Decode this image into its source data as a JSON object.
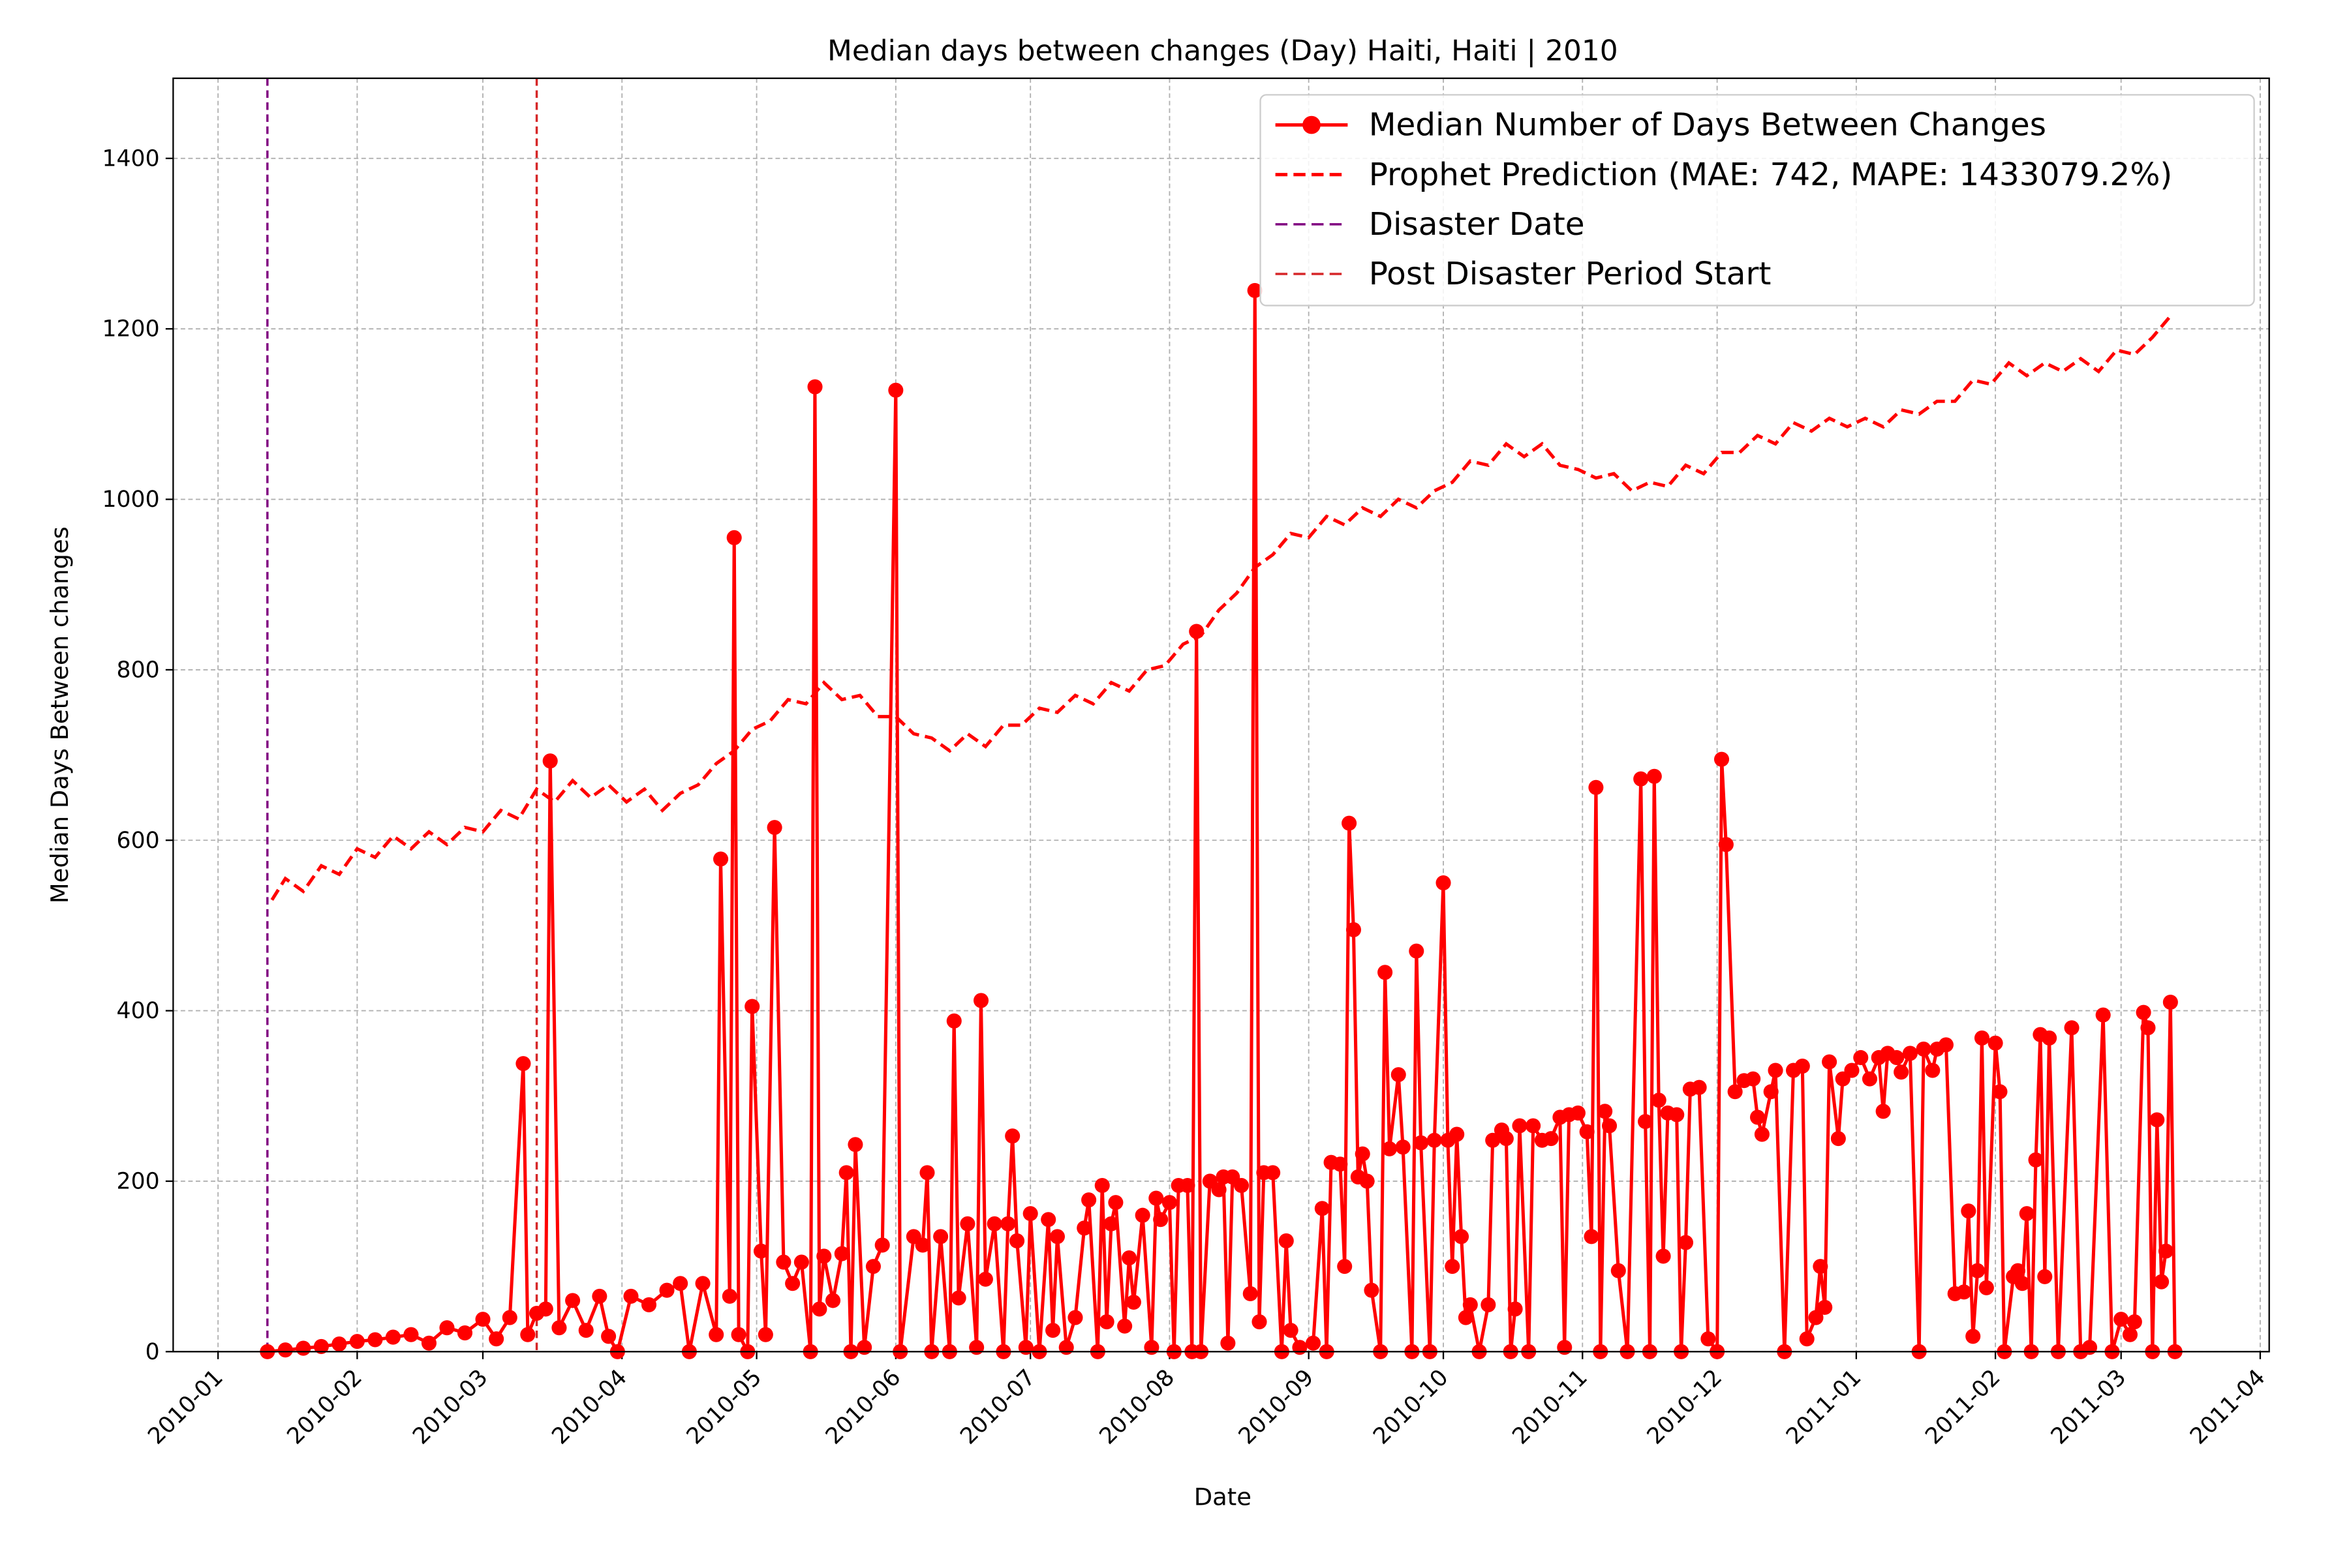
{
  "chart_data": {
    "type": "line",
    "title": "Median days between changes (Day) Haiti, Haiti | 2010",
    "xlabel": "Date",
    "ylabel": "Median Days Between changes",
    "xlim": [
      "2009-12-22",
      "2011-04-03"
    ],
    "ylim": [
      0,
      1494
    ],
    "yticks": [
      0,
      200,
      400,
      600,
      800,
      1000,
      1200,
      1400
    ],
    "xticks": [
      {
        "value": "2010-01-01",
        "label": "2010-01"
      },
      {
        "value": "2010-02-01",
        "label": "2010-02"
      },
      {
        "value": "2010-03-01",
        "label": "2010-03"
      },
      {
        "value": "2010-04-01",
        "label": "2010-04"
      },
      {
        "value": "2010-05-01",
        "label": "2010-05"
      },
      {
        "value": "2010-06-01",
        "label": "2010-06"
      },
      {
        "value": "2010-07-01",
        "label": "2010-07"
      },
      {
        "value": "2010-08-01",
        "label": "2010-08"
      },
      {
        "value": "2010-09-01",
        "label": "2010-09"
      },
      {
        "value": "2010-10-01",
        "label": "2010-10"
      },
      {
        "value": "2010-11-01",
        "label": "2010-11"
      },
      {
        "value": "2010-12-01",
        "label": "2010-12"
      },
      {
        "value": "2011-01-01",
        "label": "2011-01"
      },
      {
        "value": "2011-02-01",
        "label": "2011-02"
      },
      {
        "value": "2011-03-01",
        "label": "2011-03"
      },
      {
        "value": "2011-04-01",
        "label": "2011-04"
      }
    ],
    "grid": true,
    "legend": "upper right",
    "series": [
      {
        "name": "Median Number of Days Between Changes",
        "color": "#ff0000",
        "marker": "o",
        "linestyle": "solid",
        "x": [
          "2010-01-12",
          "2010-01-16",
          "2010-01-20",
          "2010-01-24",
          "2010-01-28",
          "2010-02-01",
          "2010-02-05",
          "2010-02-09",
          "2010-02-13",
          "2010-02-17",
          "2010-02-21",
          "2010-02-25",
          "2010-03-01",
          "2010-03-04",
          "2010-03-07",
          "2010-03-10",
          "2010-03-11",
          "2010-03-13",
          "2010-03-15",
          "2010-03-16",
          "2010-03-18",
          "2010-03-21",
          "2010-03-24",
          "2010-03-27",
          "2010-03-29",
          "2010-03-31",
          "2010-04-03",
          "2010-04-07",
          "2010-04-11",
          "2010-04-14",
          "2010-04-16",
          "2010-04-19",
          "2010-04-22",
          "2010-04-23",
          "2010-04-25",
          "2010-04-26",
          "2010-04-27",
          "2010-04-29",
          "2010-04-30",
          "2010-05-02",
          "2010-05-03",
          "2010-05-05",
          "2010-05-07",
          "2010-05-09",
          "2010-05-11",
          "2010-05-13",
          "2010-05-14",
          "2010-05-15",
          "2010-05-16",
          "2010-05-18",
          "2010-05-20",
          "2010-05-21",
          "2010-05-22",
          "2010-05-23",
          "2010-05-25",
          "2010-05-27",
          "2010-05-29",
          "2010-06-01",
          "2010-06-02",
          "2010-06-05",
          "2010-06-07",
          "2010-06-08",
          "2010-06-09",
          "2010-06-11",
          "2010-06-13",
          "2010-06-14",
          "2010-06-15",
          "2010-06-17",
          "2010-06-19",
          "2010-06-20",
          "2010-06-21",
          "2010-06-23",
          "2010-06-25",
          "2010-06-26",
          "2010-06-27",
          "2010-06-28",
          "2010-06-30",
          "2010-07-01",
          "2010-07-03",
          "2010-07-05",
          "2010-07-06",
          "2010-07-07",
          "2010-07-09",
          "2010-07-11",
          "2010-07-13",
          "2010-07-14",
          "2010-07-16",
          "2010-07-17",
          "2010-07-18",
          "2010-07-19",
          "2010-07-20",
          "2010-07-22",
          "2010-07-23",
          "2010-07-24",
          "2010-07-26",
          "2010-07-28",
          "2010-07-29",
          "2010-07-30",
          "2010-08-01",
          "2010-08-02",
          "2010-08-03",
          "2010-08-05",
          "2010-08-06",
          "2010-08-07",
          "2010-08-08",
          "2010-08-10",
          "2010-08-12",
          "2010-08-13",
          "2010-08-14",
          "2010-08-15",
          "2010-08-17",
          "2010-08-19",
          "2010-08-20",
          "2010-08-21",
          "2010-08-22",
          "2010-08-24",
          "2010-08-26",
          "2010-08-27",
          "2010-08-28",
          "2010-08-30",
          "2010-09-02",
          "2010-09-04",
          "2010-09-05",
          "2010-09-06",
          "2010-09-08",
          "2010-09-09",
          "2010-09-10",
          "2010-09-11",
          "2010-09-12",
          "2010-09-13",
          "2010-09-14",
          "2010-09-15",
          "2010-09-17",
          "2010-09-18",
          "2010-09-19",
          "2010-09-21",
          "2010-09-22",
          "2010-09-24",
          "2010-09-25",
          "2010-09-26",
          "2010-09-28",
          "2010-09-29",
          "2010-10-01",
          "2010-10-02",
          "2010-10-03",
          "2010-10-04",
          "2010-10-05",
          "2010-10-06",
          "2010-10-07",
          "2010-10-09",
          "2010-10-11",
          "2010-10-12",
          "2010-10-14",
          "2010-10-15",
          "2010-10-16",
          "2010-10-17",
          "2010-10-18",
          "2010-10-20",
          "2010-10-21",
          "2010-10-23",
          "2010-10-25",
          "2010-10-27",
          "2010-10-28",
          "2010-10-29",
          "2010-10-31",
          "2010-11-02",
          "2010-11-03",
          "2010-11-04",
          "2010-11-05",
          "2010-11-06",
          "2010-11-07",
          "2010-11-09",
          "2010-11-11",
          "2010-11-14",
          "2010-11-15",
          "2010-11-16",
          "2010-11-17",
          "2010-11-18",
          "2010-11-19",
          "2010-11-20",
          "2010-11-22",
          "2010-11-23",
          "2010-11-24",
          "2010-11-25",
          "2010-11-27",
          "2010-11-29",
          "2010-12-01",
          "2010-12-02",
          "2010-12-03",
          "2010-12-05",
          "2010-12-07",
          "2010-12-09",
          "2010-12-10",
          "2010-12-11",
          "2010-12-13",
          "2010-12-14",
          "2010-12-16",
          "2010-12-18",
          "2010-12-20",
          "2010-12-21",
          "2010-12-23",
          "2010-12-24",
          "2010-12-25",
          "2010-12-26",
          "2010-12-28",
          "2010-12-29",
          "2010-12-31",
          "2011-01-02",
          "2011-01-04",
          "2011-01-06",
          "2011-01-07",
          "2011-01-08",
          "2011-01-10",
          "2011-01-11",
          "2011-01-13",
          "2011-01-15",
          "2011-01-16",
          "2011-01-18",
          "2011-01-19",
          "2011-01-21",
          "2011-01-23",
          "2011-01-25",
          "2011-01-26",
          "2011-01-27",
          "2011-01-28",
          "2011-01-29",
          "2011-01-30",
          "2011-02-01",
          "2011-02-02",
          "2011-02-03",
          "2011-02-05",
          "2011-02-06",
          "2011-02-07",
          "2011-02-08",
          "2011-02-09",
          "2011-02-10",
          "2011-02-11",
          "2011-02-12",
          "2011-02-13",
          "2011-02-15",
          "2011-02-18",
          "2011-02-20",
          "2011-02-22",
          "2011-02-25",
          "2011-02-27",
          "2011-03-01",
          "2011-03-03",
          "2011-03-04",
          "2011-03-06",
          "2011-03-07",
          "2011-03-08",
          "2011-03-09",
          "2011-03-10",
          "2011-03-11",
          "2011-03-12",
          "2011-03-13"
        ],
        "values": [
          0,
          2,
          4,
          6,
          9,
          12,
          14,
          17,
          20,
          10,
          28,
          22,
          38,
          15,
          40,
          338,
          20,
          45,
          50,
          693,
          28,
          60,
          25,
          65,
          18,
          0,
          65,
          55,
          72,
          80,
          0,
          80,
          20,
          578,
          65,
          955,
          20,
          0,
          405,
          118,
          20,
          615,
          105,
          80,
          105,
          0,
          1132,
          50,
          112,
          60,
          115,
          210,
          0,
          243,
          5,
          100,
          125,
          1128,
          0,
          135,
          125,
          210,
          0,
          135,
          0,
          388,
          63,
          150,
          5,
          412,
          85,
          150,
          0,
          150,
          253,
          130,
          5,
          162,
          0,
          155,
          25,
          135,
          5,
          40,
          145,
          178,
          0,
          195,
          35,
          150,
          175,
          30,
          110,
          58,
          160,
          5,
          180,
          155,
          175,
          0,
          195,
          195,
          0,
          845,
          0,
          200,
          190,
          205,
          10,
          205,
          195,
          68,
          1245,
          35,
          210,
          210,
          0,
          130,
          25,
          5,
          10,
          168,
          0,
          222,
          220,
          100,
          620,
          495,
          205,
          232,
          200,
          72,
          0,
          445,
          238,
          325,
          240,
          0,
          470,
          245,
          0,
          248,
          550,
          248,
          100,
          255,
          135,
          40,
          55,
          0,
          55,
          248,
          260,
          250,
          0,
          50,
          265,
          0,
          265,
          248,
          250,
          275,
          5,
          278,
          280,
          258,
          135,
          662,
          0,
          282,
          265,
          95,
          0,
          672,
          270,
          0,
          675,
          295,
          112,
          280,
          278,
          0,
          128,
          308,
          310,
          15,
          0,
          695,
          595,
          305,
          318,
          320,
          275,
          255,
          305,
          330,
          0,
          330,
          335,
          15,
          40,
          100,
          52,
          340,
          250,
          320,
          330,
          345,
          320,
          345,
          282,
          350,
          345,
          328,
          350,
          0,
          355,
          330,
          355,
          360,
          68,
          70,
          165,
          18,
          95,
          368,
          75,
          362,
          305,
          0,
          88,
          95,
          80,
          162,
          0,
          225,
          372,
          88,
          368,
          0,
          380,
          0,
          5,
          395,
          0,
          38,
          20,
          35,
          398,
          380,
          0,
          272,
          82,
          118,
          410,
          0
        ]
      },
      {
        "name": "Prophet Prediction (MAE: 742, MAPE: 1433079.2%)",
        "color": "#ff0000",
        "linestyle": "dashed",
        "x": [
          "2010-01-13",
          "2010-01-16",
          "2010-01-20",
          "2010-01-24",
          "2010-01-28",
          "2010-02-01",
          "2010-02-05",
          "2010-02-09",
          "2010-02-13",
          "2010-02-17",
          "2010-02-21",
          "2010-02-25",
          "2010-03-01",
          "2010-03-05",
          "2010-03-09",
          "2010-03-13",
          "2010-03-17",
          "2010-03-21",
          "2010-03-25",
          "2010-03-29",
          "2010-04-02",
          "2010-04-06",
          "2010-04-10",
          "2010-04-14",
          "2010-04-18",
          "2010-04-22",
          "2010-04-26",
          "2010-04-30",
          "2010-05-04",
          "2010-05-08",
          "2010-05-12",
          "2010-05-16",
          "2010-05-20",
          "2010-05-24",
          "2010-05-28",
          "2010-06-01",
          "2010-06-05",
          "2010-06-09",
          "2010-06-13",
          "2010-06-17",
          "2010-06-21",
          "2010-06-25",
          "2010-06-29",
          "2010-07-03",
          "2010-07-07",
          "2010-07-11",
          "2010-07-15",
          "2010-07-19",
          "2010-07-23",
          "2010-07-27",
          "2010-07-31",
          "2010-08-04",
          "2010-08-08",
          "2010-08-12",
          "2010-08-16",
          "2010-08-20",
          "2010-08-24",
          "2010-08-28",
          "2010-09-01",
          "2010-09-05",
          "2010-09-09",
          "2010-09-13",
          "2010-09-17",
          "2010-09-21",
          "2010-09-25",
          "2010-09-29",
          "2010-10-03",
          "2010-10-07",
          "2010-10-11",
          "2010-10-15",
          "2010-10-19",
          "2010-10-23",
          "2010-10-27",
          "2010-10-31",
          "2010-11-04",
          "2010-11-08",
          "2010-11-12",
          "2010-11-16",
          "2010-11-20",
          "2010-11-24",
          "2010-11-28",
          "2010-12-02",
          "2010-12-06",
          "2010-12-10",
          "2010-12-14",
          "2010-12-18",
          "2010-12-22",
          "2010-12-26",
          "2010-12-30",
          "2011-01-03",
          "2011-01-07",
          "2011-01-11",
          "2011-01-15",
          "2011-01-19",
          "2011-01-23",
          "2011-01-27",
          "2011-01-31",
          "2011-02-04",
          "2011-02-08",
          "2011-02-12",
          "2011-02-16",
          "2011-02-20",
          "2011-02-24",
          "2011-02-28",
          "2011-03-04",
          "2011-03-08",
          "2011-03-12"
        ],
        "values": [
          530,
          555,
          540,
          570,
          560,
          590,
          580,
          605,
          590,
          610,
          595,
          615,
          610,
          635,
          625,
          660,
          645,
          670,
          650,
          665,
          645,
          660,
          635,
          655,
          665,
          690,
          705,
          730,
          740,
          765,
          760,
          785,
          765,
          770,
          745,
          745,
          725,
          720,
          705,
          725,
          710,
          735,
          735,
          755,
          750,
          770,
          760,
          785,
          775,
          800,
          805,
          830,
          840,
          870,
          890,
          920,
          935,
          960,
          955,
          980,
          970,
          990,
          980,
          1000,
          990,
          1010,
          1020,
          1045,
          1040,
          1065,
          1050,
          1065,
          1040,
          1035,
          1025,
          1030,
          1010,
          1020,
          1015,
          1040,
          1030,
          1055,
          1055,
          1075,
          1065,
          1090,
          1080,
          1095,
          1085,
          1095,
          1085,
          1105,
          1100,
          1115,
          1115,
          1140,
          1135,
          1160,
          1145,
          1160,
          1150,
          1165,
          1150,
          1175,
          1170,
          1190,
          1215
        ]
      }
    ],
    "vlines": [
      {
        "name": "Disaster Date",
        "x": "2010-01-12",
        "color": "#800080"
      },
      {
        "name": "Post Disaster Period Start",
        "x": "2010-03-13",
        "color": "#d62728"
      }
    ]
  }
}
